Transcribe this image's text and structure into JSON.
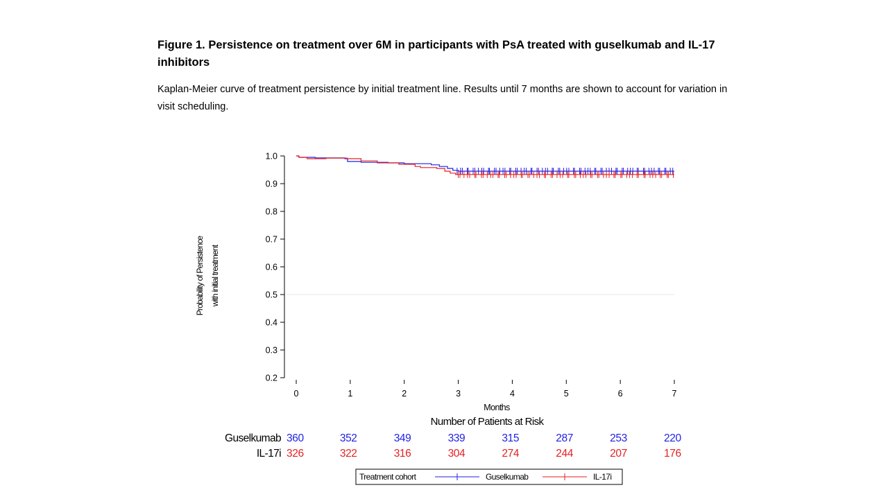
{
  "figure": {
    "title": "Figure 1. Persistence on treatment over 6M in participants with PsA treated with guselkumab and IL-17 inhibitors",
    "caption": "Kaplan-Meier curve of treatment persistence by initial treatment line. Results until 7 months are shown to account for variation in visit scheduling."
  },
  "colors": {
    "guselkumab": "#1f1fe6",
    "il17i": "#e61f1f",
    "axis": "#000000",
    "refline": "#e8e8e8"
  },
  "chart_data": {
    "type": "line",
    "subtype": "kaplan-meier",
    "title": "",
    "xlabel": "Months",
    "ylabel_line1": "Probability of Persistence",
    "ylabel_line2": "with initial treatment",
    "xlim": [
      0,
      7
    ],
    "ylim": [
      0.2,
      1.0
    ],
    "x_ticks": [
      0,
      1,
      2,
      3,
      4,
      5,
      6,
      7
    ],
    "x_tick_labels": [
      "0",
      "1",
      "2",
      "3",
      "4",
      "5",
      "6",
      "7"
    ],
    "y_ticks": [
      0.2,
      0.3,
      0.4,
      0.5,
      0.6,
      0.7,
      0.8,
      0.9,
      1.0
    ],
    "y_tick_labels": [
      "0.2",
      "0.3",
      "0.4",
      "0.5",
      "0.6",
      "0.7",
      "0.8",
      "0.9",
      "1.0"
    ],
    "reference_line_y": 0.5,
    "series": [
      {
        "name": "Guselkumab",
        "color": "#1f1fe6",
        "steps": [
          [
            0,
            1.0
          ],
          [
            0.05,
            0.995
          ],
          [
            0.35,
            0.993
          ],
          [
            0.9,
            0.99
          ],
          [
            0.95,
            0.98
          ],
          [
            1.2,
            0.977
          ],
          [
            1.7,
            0.975
          ],
          [
            2.0,
            0.972
          ],
          [
            2.5,
            0.968
          ],
          [
            2.65,
            0.962
          ],
          [
            2.8,
            0.955
          ],
          [
            2.9,
            0.948
          ],
          [
            3.0,
            0.945
          ],
          [
            7.0,
            0.945
          ]
        ],
        "censor_start": 2.95,
        "censor_end": 7.0,
        "censor_count": 72
      },
      {
        "name": "IL-17i",
        "color": "#e61f1f",
        "steps": [
          [
            0,
            1.0
          ],
          [
            0.05,
            0.995
          ],
          [
            0.2,
            0.99
          ],
          [
            0.55,
            0.992
          ],
          [
            0.95,
            0.99
          ],
          [
            1.2,
            0.982
          ],
          [
            1.5,
            0.975
          ],
          [
            1.9,
            0.97
          ],
          [
            2.2,
            0.962
          ],
          [
            2.3,
            0.958
          ],
          [
            2.6,
            0.955
          ],
          [
            2.75,
            0.945
          ],
          [
            2.85,
            0.938
          ],
          [
            2.95,
            0.933
          ],
          [
            7.0,
            0.933
          ]
        ],
        "censor_start": 2.95,
        "censor_end": 7.0,
        "censor_count": 66
      }
    ]
  },
  "risk_table": {
    "title": "Number of Patients at Risk",
    "rows": [
      {
        "label": "Guselkumab",
        "color": "#1f1fe6",
        "values": [
          "360",
          "352",
          "349",
          "339",
          "315",
          "287",
          "253",
          "220"
        ]
      },
      {
        "label": "IL-17i",
        "color": "#e61f1f",
        "values": [
          "326",
          "322",
          "316",
          "304",
          "274",
          "244",
          "207",
          "176"
        ]
      }
    ]
  },
  "legend": {
    "title": "Treatment cohort",
    "items": [
      {
        "label": "Guselkumab",
        "color": "#1f1fe6"
      },
      {
        "label": "IL-17i",
        "color": "#e61f1f"
      }
    ]
  }
}
